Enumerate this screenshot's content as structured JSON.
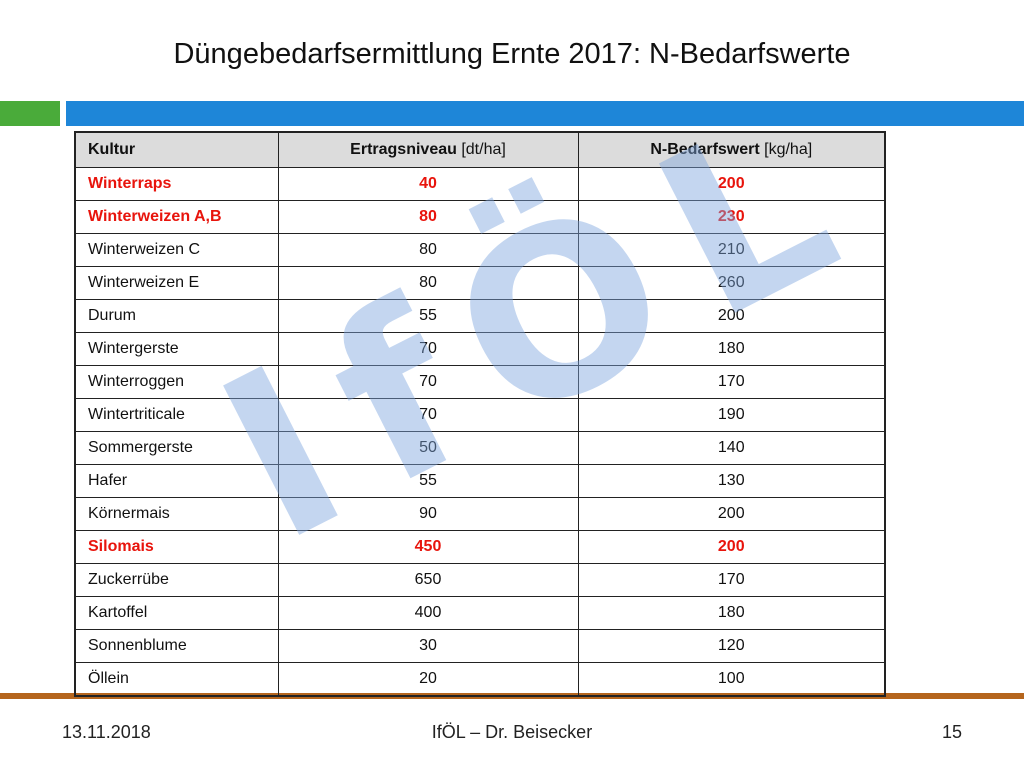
{
  "title": "Düngebedarfsermittlung Ernte 2017: N-Bedarfswerte",
  "colors": {
    "green_bar": "#4aab3a",
    "blue_bar": "#1e86d8",
    "bottom_bar": "#b5651d",
    "highlight_text": "#e8140c",
    "watermark": "#7ea6de"
  },
  "table": {
    "headers": [
      {
        "bold": "Kultur",
        "unit": ""
      },
      {
        "bold": "Ertragsniveau",
        "unit": " [dt/ha]"
      },
      {
        "bold": "N-Bedarfswert",
        "unit": " [kg/ha]"
      }
    ],
    "rows": [
      {
        "kultur": "Winterraps",
        "ertrag": "40",
        "n": "200",
        "highlight": true
      },
      {
        "kultur": "Winterweizen A,B",
        "ertrag": "80",
        "n": "230",
        "highlight": true
      },
      {
        "kultur": "Winterweizen C",
        "ertrag": "80",
        "n": "210",
        "highlight": false
      },
      {
        "kultur": "Winterweizen E",
        "ertrag": "80",
        "n": "260",
        "highlight": false
      },
      {
        "kultur": "Durum",
        "ertrag": "55",
        "n": "200",
        "highlight": false
      },
      {
        "kultur": "Wintergerste",
        "ertrag": "70",
        "n": "180",
        "highlight": false
      },
      {
        "kultur": "Winterroggen",
        "ertrag": "70",
        "n": "170",
        "highlight": false
      },
      {
        "kultur": "Wintertriticale",
        "ertrag": "70",
        "n": "190",
        "highlight": false
      },
      {
        "kultur": "Sommergerste",
        "ertrag": "50",
        "n": "140",
        "highlight": false
      },
      {
        "kultur": "Hafer",
        "ertrag": "55",
        "n": "130",
        "highlight": false
      },
      {
        "kultur": "Körnermais",
        "ertrag": "90",
        "n": "200",
        "highlight": false
      },
      {
        "kultur": "Silomais",
        "ertrag": "450",
        "n": "200",
        "highlight": true
      },
      {
        "kultur": "Zuckerrübe",
        "ertrag": "650",
        "n": "170",
        "highlight": false
      },
      {
        "kultur": "Kartoffel",
        "ertrag": "400",
        "n": "180",
        "highlight": false
      },
      {
        "kultur": "Sonnenblume",
        "ertrag": "30",
        "n": "120",
        "highlight": false
      },
      {
        "kultur": "Öllein",
        "ertrag": "20",
        "n": "100",
        "highlight": false
      }
    ]
  },
  "watermark": "IfÖL",
  "footer": {
    "date": "13.11.2018",
    "center": "IfÖL – Dr. Beisecker",
    "page": "15"
  }
}
